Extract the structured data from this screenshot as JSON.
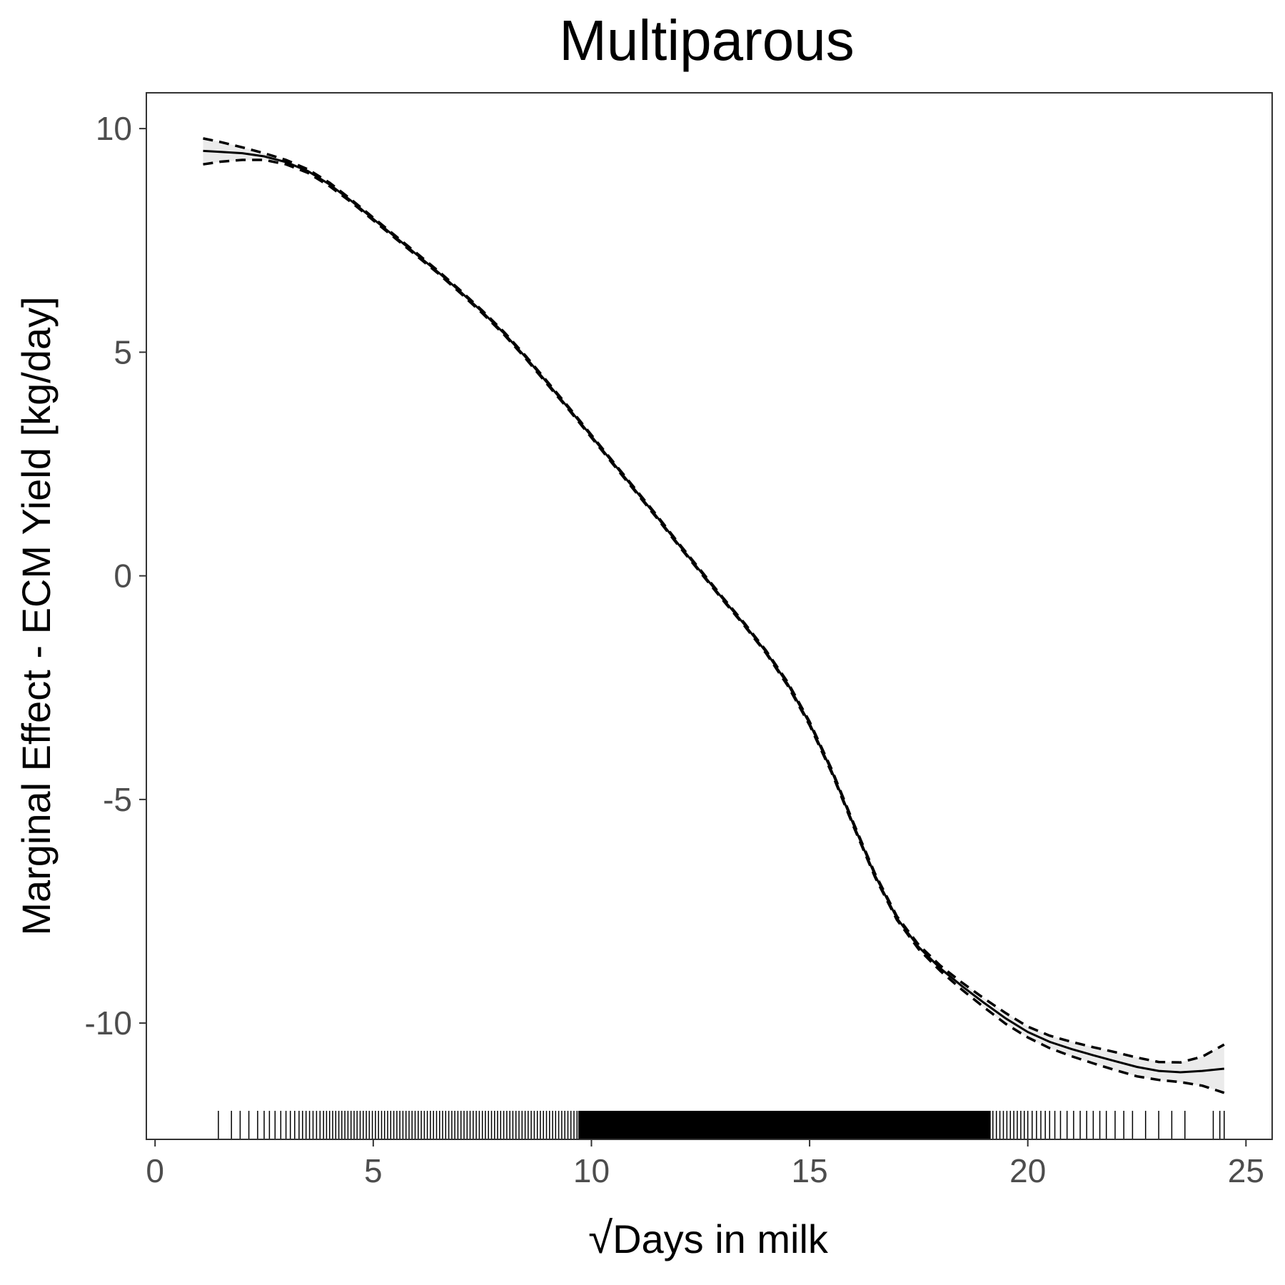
{
  "chart_data": {
    "type": "line",
    "title": "Multiparous",
    "xlabel": "Days in milk",
    "xlabel_prefix": "√",
    "ylabel": "Marginal Effect - ECM Yield [kg/day]",
    "xlim": [
      -0.2,
      25.6
    ],
    "ylim": [
      -12.6,
      10.8
    ],
    "x_ticks": [
      0,
      5,
      10,
      15,
      20,
      25
    ],
    "y_ticks": [
      -10,
      -5,
      0,
      5,
      10
    ],
    "grid": false,
    "series": [
      {
        "role": "estimate",
        "style": "solid",
        "points": [
          [
            1.1,
            9.5
          ],
          [
            1.5,
            9.48
          ],
          [
            2,
            9.45
          ],
          [
            2.5,
            9.38
          ],
          [
            3,
            9.25
          ],
          [
            3.5,
            9.05
          ],
          [
            4,
            8.75
          ],
          [
            4.5,
            8.38
          ],
          [
            5,
            7.98
          ],
          [
            5.5,
            7.58
          ],
          [
            6,
            7.18
          ],
          [
            6.5,
            6.78
          ],
          [
            7,
            6.35
          ],
          [
            7.5,
            5.9
          ],
          [
            8,
            5.42
          ],
          [
            8.5,
            4.88
          ],
          [
            9,
            4.3
          ],
          [
            9.5,
            3.72
          ],
          [
            10,
            3.12
          ],
          [
            10.5,
            2.52
          ],
          [
            11,
            1.92
          ],
          [
            11.5,
            1.32
          ],
          [
            12,
            0.7
          ],
          [
            12.5,
            0.1
          ],
          [
            13,
            -0.5
          ],
          [
            13.5,
            -1.08
          ],
          [
            14,
            -1.7
          ],
          [
            14.5,
            -2.42
          ],
          [
            15,
            -3.3
          ],
          [
            15.5,
            -4.35
          ],
          [
            16,
            -5.55
          ],
          [
            16.5,
            -6.7
          ],
          [
            17,
            -7.65
          ],
          [
            17.5,
            -8.3
          ],
          [
            18,
            -8.78
          ],
          [
            18.5,
            -9.18
          ],
          [
            19,
            -9.55
          ],
          [
            19.5,
            -9.9
          ],
          [
            20,
            -10.2
          ],
          [
            20.5,
            -10.42
          ],
          [
            21,
            -10.58
          ],
          [
            21.5,
            -10.72
          ],
          [
            22,
            -10.85
          ],
          [
            22.5,
            -10.98
          ],
          [
            23,
            -11.07
          ],
          [
            23.5,
            -11.1
          ],
          [
            24,
            -11.07
          ],
          [
            24.5,
            -11.02
          ]
        ]
      },
      {
        "role": "upper",
        "style": "dashed",
        "points": [
          [
            1.1,
            9.78
          ],
          [
            1.5,
            9.7
          ],
          [
            2,
            9.58
          ],
          [
            2.5,
            9.45
          ],
          [
            3,
            9.3
          ],
          [
            3.5,
            9.09
          ],
          [
            4,
            8.79
          ],
          [
            4.5,
            8.41
          ],
          [
            5,
            8.01
          ],
          [
            5.5,
            7.61
          ],
          [
            6,
            7.21
          ],
          [
            6.5,
            6.81
          ],
          [
            7,
            6.38
          ],
          [
            7.5,
            5.93
          ],
          [
            8,
            5.45
          ],
          [
            8.5,
            4.91
          ],
          [
            9,
            4.33
          ],
          [
            9.5,
            3.75
          ],
          [
            10,
            3.15
          ],
          [
            10.5,
            2.55
          ],
          [
            11,
            1.95
          ],
          [
            11.5,
            1.35
          ],
          [
            12,
            0.73
          ],
          [
            12.5,
            0.13
          ],
          [
            13,
            -0.47
          ],
          [
            13.5,
            -1.05
          ],
          [
            14,
            -1.67
          ],
          [
            14.5,
            -2.38
          ],
          [
            15,
            -3.26
          ],
          [
            15.5,
            -4.31
          ],
          [
            16,
            -5.51
          ],
          [
            16.5,
            -6.66
          ],
          [
            17,
            -7.61
          ],
          [
            17.5,
            -8.25
          ],
          [
            18,
            -8.72
          ],
          [
            18.5,
            -9.1
          ],
          [
            19,
            -9.45
          ],
          [
            19.5,
            -9.78
          ],
          [
            20,
            -10.08
          ],
          [
            20.5,
            -10.28
          ],
          [
            21,
            -10.42
          ],
          [
            21.5,
            -10.54
          ],
          [
            22,
            -10.65
          ],
          [
            22.5,
            -10.77
          ],
          [
            23,
            -10.87
          ],
          [
            23.5,
            -10.88
          ],
          [
            24,
            -10.75
          ],
          [
            24.5,
            -10.48
          ]
        ]
      },
      {
        "role": "lower",
        "style": "dashed",
        "points": [
          [
            1.1,
            9.2
          ],
          [
            1.5,
            9.26
          ],
          [
            2,
            9.3
          ],
          [
            2.5,
            9.3
          ],
          [
            3,
            9.2
          ],
          [
            3.5,
            9.01
          ],
          [
            4,
            8.71
          ],
          [
            4.5,
            8.35
          ],
          [
            5,
            7.95
          ],
          [
            5.5,
            7.55
          ],
          [
            6,
            7.15
          ],
          [
            6.5,
            6.75
          ],
          [
            7,
            6.32
          ],
          [
            7.5,
            5.87
          ],
          [
            8,
            5.39
          ],
          [
            8.5,
            4.85
          ],
          [
            9,
            4.27
          ],
          [
            9.5,
            3.69
          ],
          [
            10,
            3.09
          ],
          [
            10.5,
            2.49
          ],
          [
            11,
            1.89
          ],
          [
            11.5,
            1.29
          ],
          [
            12,
            0.67
          ],
          [
            12.5,
            0.07
          ],
          [
            13,
            -0.53
          ],
          [
            13.5,
            -1.11
          ],
          [
            14,
            -1.73
          ],
          [
            14.5,
            -2.46
          ],
          [
            15,
            -3.34
          ],
          [
            15.5,
            -4.39
          ],
          [
            16,
            -5.59
          ],
          [
            16.5,
            -6.74
          ],
          [
            17,
            -7.69
          ],
          [
            17.5,
            -8.35
          ],
          [
            18,
            -8.84
          ],
          [
            18.5,
            -9.26
          ],
          [
            19,
            -9.65
          ],
          [
            19.5,
            -10.02
          ],
          [
            20,
            -10.32
          ],
          [
            20.5,
            -10.56
          ],
          [
            21,
            -10.74
          ],
          [
            21.5,
            -10.9
          ],
          [
            22,
            -11.05
          ],
          [
            22.5,
            -11.19
          ],
          [
            23,
            -11.27
          ],
          [
            23.5,
            -11.32
          ],
          [
            24,
            -11.4
          ],
          [
            24.5,
            -11.56
          ]
        ]
      }
    ],
    "rug_x": [
      1.45,
      1.75,
      1.95,
      2.15,
      2.35,
      2.5,
      2.62,
      2.75,
      2.88,
      3.0,
      3.1,
      3.2,
      3.3,
      3.38,
      3.46,
      3.54,
      3.62,
      3.7,
      3.78,
      3.86,
      3.93,
      4.0,
      4.07,
      4.14,
      4.21,
      4.28,
      4.35,
      4.42,
      4.49,
      4.56,
      4.63,
      4.7,
      4.77,
      4.84,
      4.91,
      4.98,
      5.05,
      5.12,
      5.19,
      5.26,
      5.33,
      5.4,
      5.47,
      5.54,
      5.61,
      5.68,
      5.75,
      5.82,
      5.89,
      5.96,
      6.03,
      6.1,
      6.17,
      6.24,
      6.31,
      6.38,
      6.45,
      6.52,
      6.59,
      6.66,
      6.73,
      6.8,
      6.87,
      6.94,
      7.01,
      7.08,
      7.15,
      7.22,
      7.29,
      7.36,
      7.43,
      7.5,
      7.57,
      7.64,
      7.71,
      7.78,
      7.85,
      7.92,
      7.99,
      8.06,
      8.13,
      8.2,
      8.27,
      8.34,
      8.41,
      8.48,
      8.55,
      8.62,
      8.69,
      8.76,
      8.83,
      8.9,
      8.97,
      9.04,
      9.11,
      9.18,
      9.25,
      9.32,
      9.39,
      9.46,
      9.53,
      9.6,
      9.67,
      9.74,
      9.81,
      9.88,
      9.95,
      10.02,
      10.09,
      10.16,
      10.23,
      10.3,
      10.37,
      10.44,
      10.51,
      10.58,
      10.65,
      10.72,
      10.79,
      10.86,
      10.93,
      11.0,
      11.07,
      11.14,
      11.21,
      11.28,
      11.35,
      11.42,
      11.49,
      11.56,
      11.63,
      11.7,
      11.77,
      11.84,
      11.91,
      11.98,
      12.05,
      12.12,
      12.19,
      12.26,
      12.33,
      12.4,
      12.47,
      12.54,
      12.61,
      12.68,
      12.75,
      12.82,
      12.89,
      12.96,
      13.03,
      13.1,
      13.17,
      13.24,
      13.31,
      13.38,
      13.45,
      13.52,
      13.59,
      13.66,
      13.73,
      13.8,
      13.87,
      13.94,
      14.01,
      14.08,
      14.15,
      14.22,
      14.29,
      14.36,
      14.43,
      14.5,
      14.57,
      14.64,
      14.71,
      14.78,
      14.85,
      14.92,
      14.99,
      15.06,
      15.13,
      15.2,
      15.27,
      15.34,
      15.41,
      15.48,
      15.55,
      15.62,
      15.69,
      15.76,
      15.83,
      15.9,
      15.97,
      16.04,
      16.11,
      16.18,
      16.25,
      16.32,
      16.39,
      16.46,
      16.53,
      16.6,
      16.67,
      16.74,
      16.81,
      16.88,
      16.95,
      17.02,
      17.09,
      17.16,
      17.23,
      17.3,
      17.37,
      17.44,
      17.51,
      17.58,
      17.65,
      17.72,
      17.79,
      17.86,
      17.93,
      18.0,
      18.07,
      18.14,
      18.21,
      18.28,
      18.35,
      18.42,
      18.49,
      18.56,
      18.63,
      18.7,
      18.77,
      18.84,
      18.91,
      18.98,
      19.05,
      19.12,
      19.2,
      19.28,
      19.36,
      19.44,
      19.52,
      19.6,
      19.68,
      19.76,
      19.84,
      19.92,
      20.0,
      20.1,
      20.2,
      20.3,
      20.4,
      20.5,
      20.62,
      20.75,
      20.9,
      21.05,
      21.2,
      21.35,
      21.5,
      21.65,
      21.8,
      22.0,
      22.2,
      22.4,
      22.7,
      23.0,
      23.3,
      23.6,
      24.25,
      24.4,
      24.5
    ]
  }
}
